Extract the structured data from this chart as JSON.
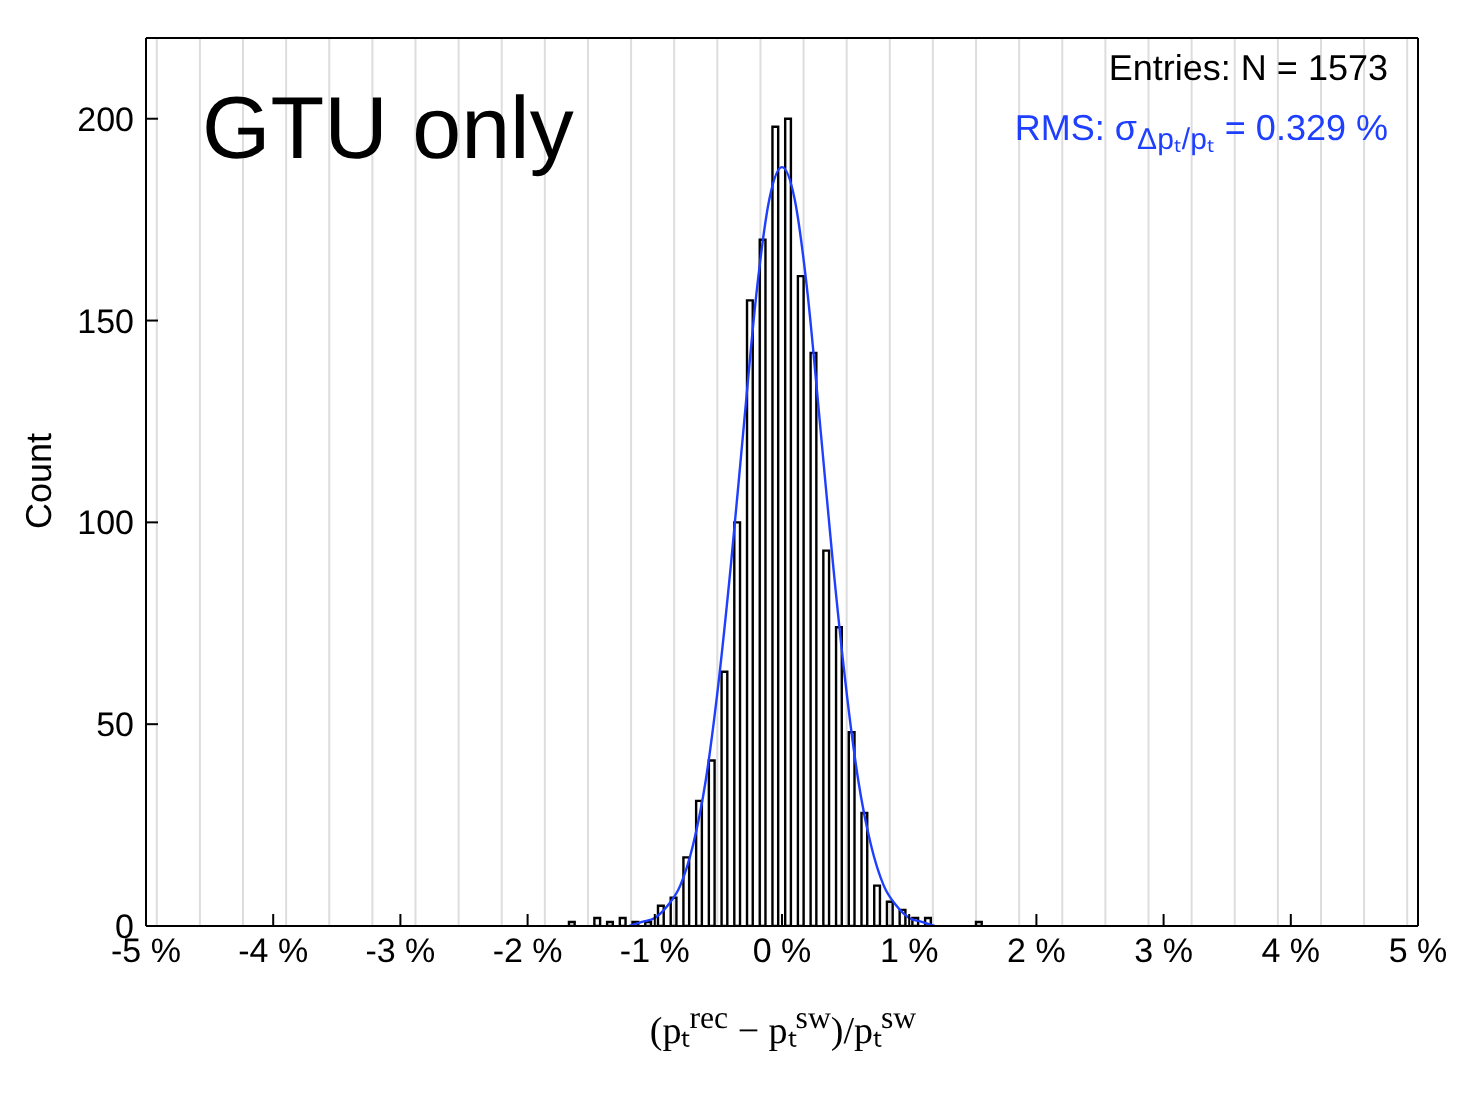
{
  "chart_data": {
    "type": "histogram",
    "title": "GTU only",
    "xlabel": "(pₜ$^{rec}$ − pₜ$^{sw}$)/pₜ$^{sw}$",
    "ylabel": "Count",
    "bins": [
      -1.8,
      -1.7,
      -1.6,
      -1.5,
      -1.4,
      -1.3,
      -1.2,
      -1.1,
      -1.0,
      -0.9,
      -0.8,
      -0.7,
      -0.6,
      -0.5,
      -0.4,
      -0.3,
      -0.2,
      -0.1,
      0,
      0.1,
      0.2,
      0.3,
      0.4,
      0.5,
      0.6,
      0.7,
      0.8,
      0.9,
      1.0,
      1.1,
      1.2,
      1.3,
      1.4,
      1.5,
      1.6
    ],
    "values": [
      0,
      1,
      0,
      2,
      1,
      2,
      1,
      1,
      5,
      7,
      17,
      31,
      41,
      63,
      100,
      155,
      170,
      198,
      200,
      161,
      142,
      93,
      74,
      48,
      28,
      10,
      6,
      4,
      2,
      2,
      0,
      0,
      0,
      1
    ],
    "color": "#000000",
    "series": [
      {
        "type": "line",
        "color": "#1f3fff",
        "x": [
          -1.2,
          -1.1,
          -1.0,
          -0.9,
          -0.8,
          -0.7,
          -0.6,
          -0.5,
          -0.4,
          -0.3,
          -0.2,
          -0.1,
          0,
          0.1,
          0.2,
          0.3,
          0.4,
          0.5,
          0.6,
          0.7,
          0.8,
          0.9,
          1.0,
          1.1,
          1.2
        ],
        "values": [
          0,
          1,
          2,
          5,
          10,
          20,
          36,
          60,
          90,
          124,
          157,
          180,
          188,
          180,
          157,
          124,
          90,
          60,
          36,
          20,
          10,
          5,
          2,
          1,
          0
        ]
      }
    ],
    "annotations": [
      "Entries: N = 1573",
      "RMS: σ$_{Δpₜ/pₜ}$ = 0.329 %"
    ],
    "xlim": [
      -5,
      5
    ],
    "xticks": [
      {
        "value": -5,
        "label": "-5 %"
      },
      {
        "value": -4,
        "label": "-4 %"
      },
      {
        "value": -3,
        "label": "-3 %"
      },
      {
        "value": -2,
        "label": "-2 %"
      },
      {
        "value": -1,
        "label": "-1 %"
      },
      {
        "value": 0,
        "label": "0 %"
      },
      {
        "value": 1,
        "label": "1 %"
      },
      {
        "value": 2,
        "label": "2 %"
      },
      {
        "value": 3,
        "label": "3 %"
      },
      {
        "value": 4,
        "label": "4 %"
      },
      {
        "value": 5,
        "label": "5 %"
      }
    ],
    "ylim": [
      0,
      220
    ],
    "yticks": [
      0,
      50,
      100,
      150,
      200
    ],
    "grid": true,
    "legend": false
  }
}
